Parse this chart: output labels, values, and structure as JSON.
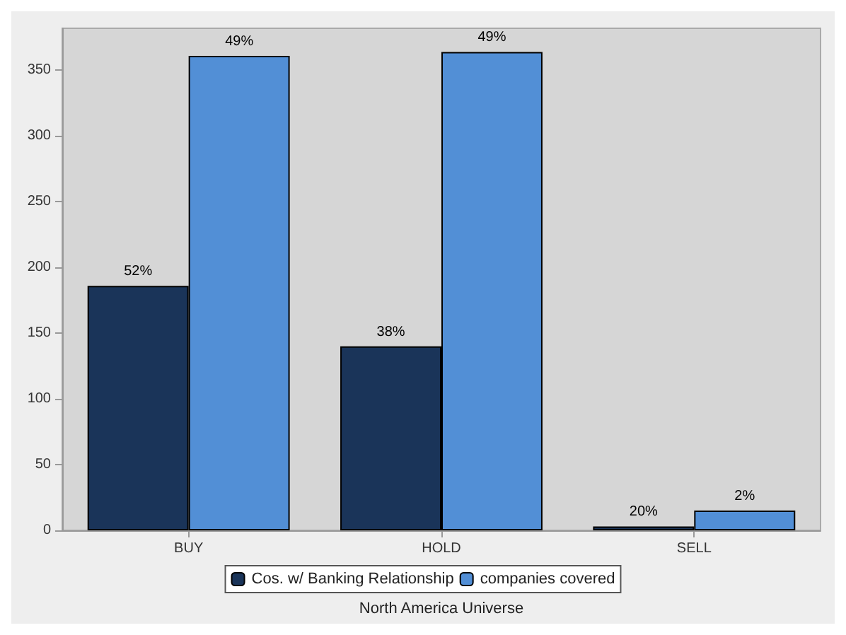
{
  "chart_data": {
    "type": "bar",
    "xlabel": "North America Universe",
    "categories": [
      "BUY",
      "HOLD",
      "SELL"
    ],
    "series": [
      {
        "name": "Cos. w/ Banking Relationship",
        "color": "#1a3459",
        "values": [
          186,
          140,
          3
        ]
      },
      {
        "name": "companies covered",
        "color": "#528fd6",
        "values": [
          361,
          364,
          15
        ]
      }
    ],
    "annotations": [
      {
        "text": "52%",
        "x": "BUY",
        "y": 186
      },
      {
        "text": "49%",
        "x": "BUY",
        "y": 361
      },
      {
        "text": "38%",
        "x": "HOLD",
        "y": 140
      },
      {
        "text": "49%",
        "x": "HOLD",
        "y": 364
      },
      {
        "text": "20%",
        "x": "SELL",
        "y": 3
      },
      {
        "text": "2%",
        "x": "SELL",
        "y": 15
      }
    ],
    "ylim": [
      0,
      382
    ],
    "yticks": [
      0,
      50,
      100,
      150,
      200,
      250,
      300,
      350
    ],
    "grid": false,
    "legend": "bottom"
  }
}
